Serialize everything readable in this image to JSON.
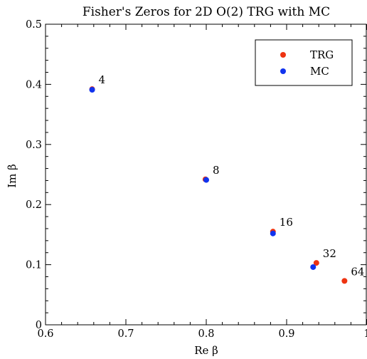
{
  "chart_data": {
    "type": "scatter",
    "title": "Fisher's Zeros for 2D O(2) TRG with MC",
    "xlabel": "Re β",
    "ylabel": "Im β",
    "xlim": [
      0.6,
      1.0
    ],
    "ylim": [
      0.0,
      0.5
    ],
    "xticks": [
      "0.6",
      "0.7",
      "0.8",
      "0.9",
      "1"
    ],
    "yticks": [
      "0",
      "0.1",
      "0.2",
      "0.3",
      "0.4",
      "0.5"
    ],
    "grid": false,
    "legend_position": "top-right",
    "series": [
      {
        "name": "TRG",
        "color": "#ee3311",
        "points": [
          {
            "x": 0.658,
            "y": 0.392
          },
          {
            "x": 0.799,
            "y": 0.242
          },
          {
            "x": 0.883,
            "y": 0.155
          },
          {
            "x": 0.937,
            "y": 0.103
          },
          {
            "x": 0.972,
            "y": 0.073
          }
        ]
      },
      {
        "name": "MC",
        "color": "#1133ee",
        "points": [
          {
            "x": 0.658,
            "y": 0.391
          },
          {
            "x": 0.8,
            "y": 0.241
          },
          {
            "x": 0.883,
            "y": 0.152
          },
          {
            "x": 0.933,
            "y": 0.096
          }
        ]
      }
    ],
    "annotations": [
      {
        "text": "4",
        "x": 0.658,
        "y": 0.392
      },
      {
        "text": "8",
        "x": 0.8,
        "y": 0.242
      },
      {
        "text": "16",
        "x": 0.883,
        "y": 0.155
      },
      {
        "text": "32",
        "x": 0.937,
        "y": 0.103
      },
      {
        "text": "64",
        "x": 0.972,
        "y": 0.073
      }
    ]
  }
}
